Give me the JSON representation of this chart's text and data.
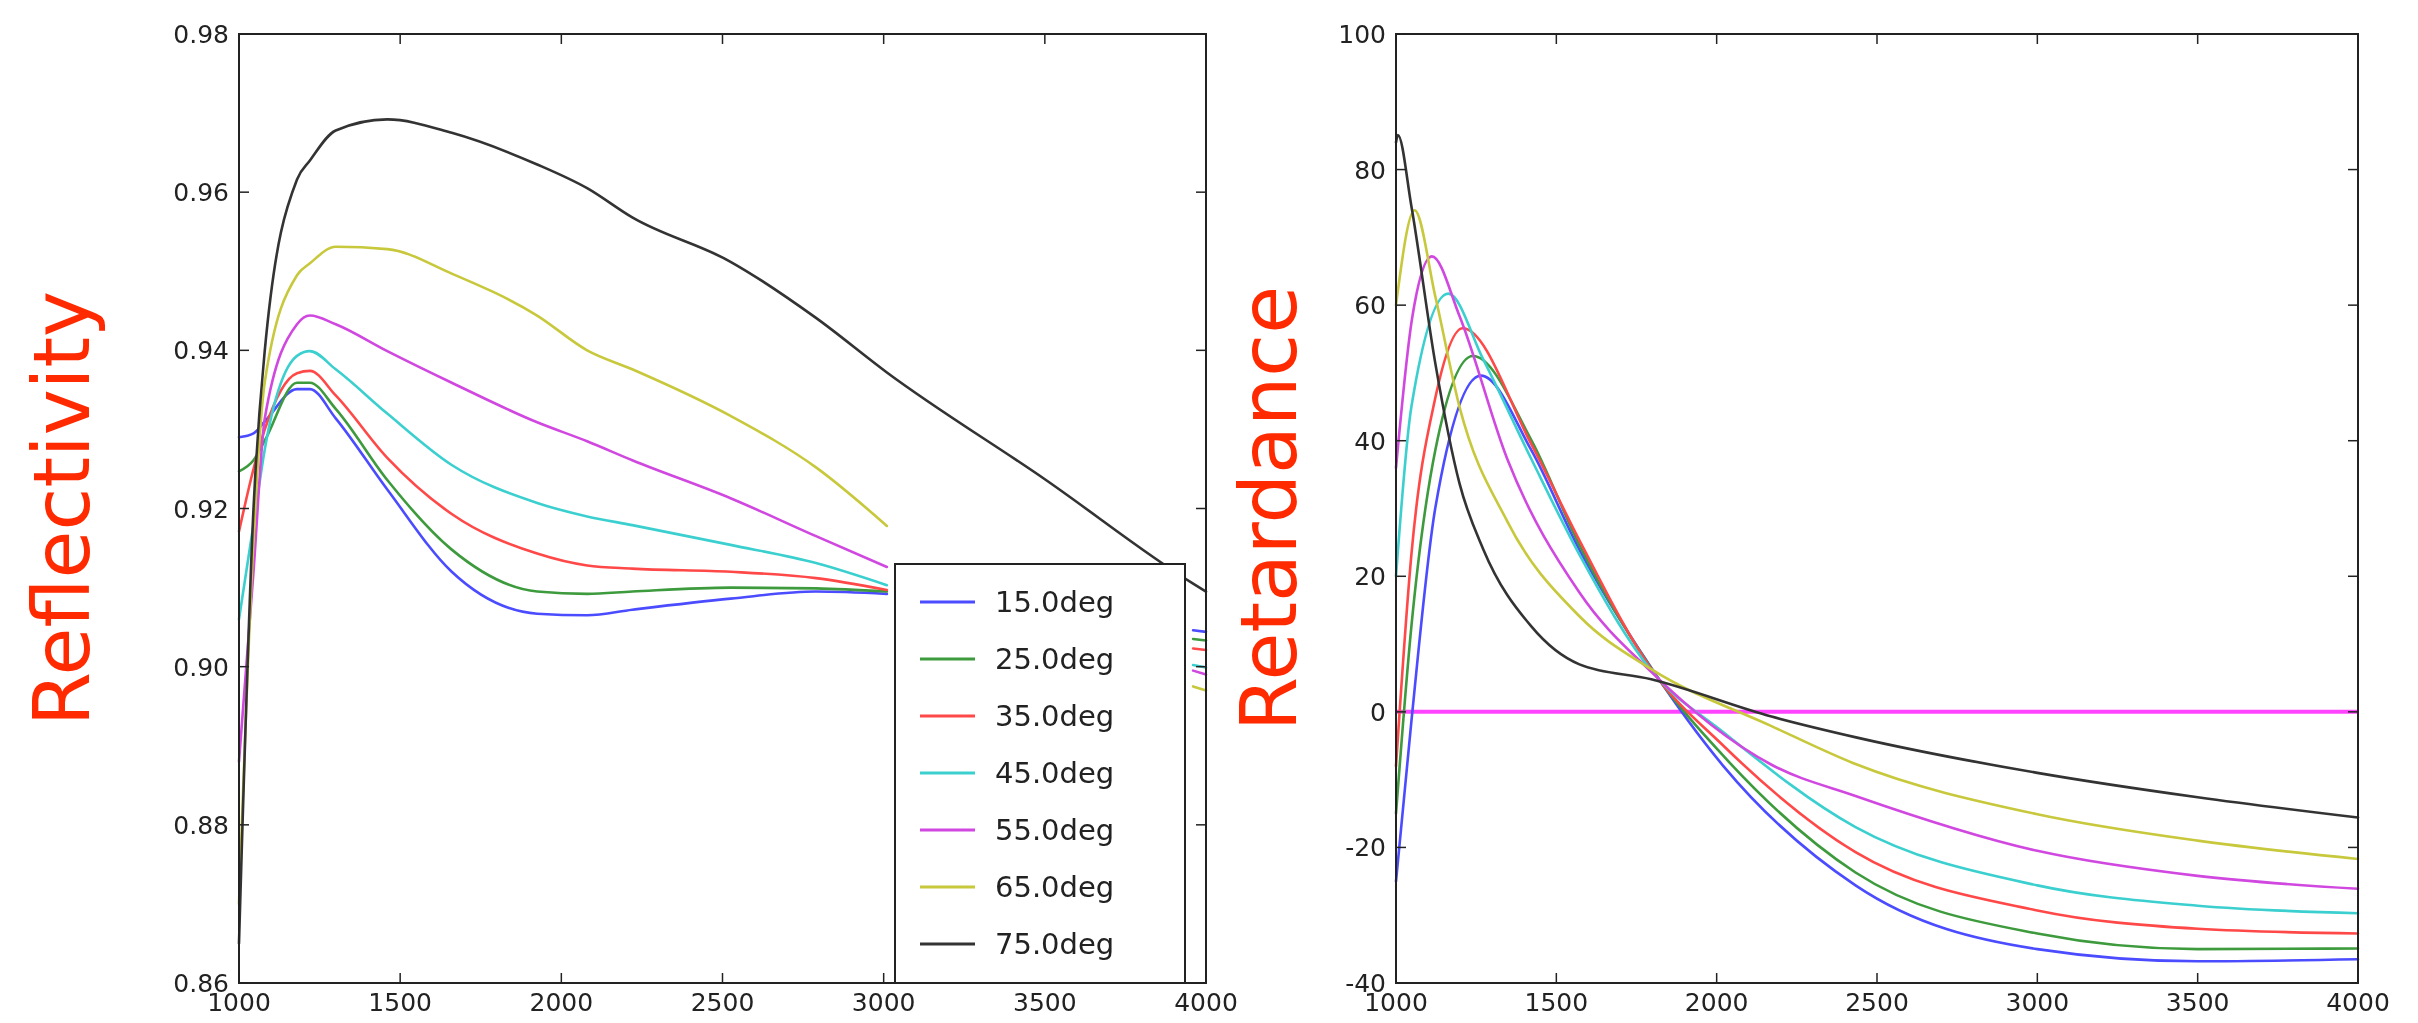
{
  "chart_data": [
    {
      "type": "line",
      "ylabel": "Reflectivity",
      "x": [
        1000,
        1045,
        1080,
        1180,
        1220,
        1300,
        1460,
        1660,
        1925,
        2080,
        2220,
        2525,
        2790,
        3010,
        3500,
        3960,
        4000
      ],
      "xlim": [
        1000,
        4000
      ],
      "ylim": [
        0.86,
        0.98
      ],
      "xticks": [
        1000,
        1500,
        2000,
        2500,
        3000,
        3500,
        4000
      ],
      "yticks": [
        0.86,
        0.88,
        {
          "value": 0.9,
          "label": "0.90"
        },
        0.92,
        0.94,
        0.96,
        0.98
      ],
      "grid": false,
      "legend": "bottom right",
      "line_style": "solid",
      "series": [
        {
          "name": "15.0deg",
          "color": "#4b4bff",
          "values": [
            0.929,
            0.9295,
            0.931,
            0.9351,
            0.9351,
            0.9314,
            0.9224,
            0.912,
            0.9067,
            0.9065,
            0.9072,
            0.9086,
            0.9095,
            0.9092,
            null,
            0.9046,
            0.9044
          ]
        },
        {
          "name": "25.0deg",
          "color": "#3d9a3d",
          "values": [
            0.9247,
            0.9261,
            0.9286,
            0.9359,
            0.9359,
            0.9326,
            0.9236,
            0.9148,
            0.9095,
            0.9092,
            0.9095,
            0.91,
            0.9099,
            0.9095,
            null,
            0.9035,
            0.9033
          ]
        },
        {
          "name": "35.0deg",
          "color": "#ff4848",
          "values": [
            0.9171,
            0.925,
            0.93,
            0.9371,
            0.9374,
            0.9343,
            0.9264,
            0.9193,
            0.9143,
            0.9128,
            0.9124,
            0.912,
            0.9112,
            0.9097,
            null,
            0.9023,
            0.9021
          ]
        },
        {
          "name": "45.0deg",
          "color": "#3ccfcf",
          "values": [
            0.906,
            0.918,
            0.9275,
            0.9393,
            0.9399,
            0.9376,
            0.932,
            0.9255,
            0.9207,
            0.919,
            0.9179,
            0.9154,
            0.9131,
            0.9103,
            null,
            0.9002,
            0.8999
          ]
        },
        {
          "name": "55.0deg",
          "color": "#d048e0",
          "values": [
            0.888,
            0.912,
            0.9314,
            0.9433,
            0.9444,
            0.9433,
            0.9399,
            0.9359,
            0.9309,
            0.9285,
            0.9261,
            0.9213,
            0.9165,
            0.9126,
            null,
            0.8995,
            0.899
          ]
        },
        {
          "name": "65.0deg",
          "color": "#c8c83c",
          "values": [
            0.87,
            0.916,
            0.936,
            0.9495,
            0.951,
            0.9531,
            0.9528,
            0.9497,
            0.9444,
            0.94,
            0.9376,
            0.9317,
            0.9252,
            0.9178,
            null,
            0.8975,
            0.897
          ]
        },
        {
          "name": "75.0deg",
          "color": "#333333",
          "values": [
            0.865,
            0.92,
            0.94,
            0.9616,
            0.964,
            0.9678,
            0.9692,
            0.9675,
            0.9635,
            0.9605,
            0.9568,
            0.9512,
            0.9441,
            0.9372,
            0.9237,
            0.9105,
            0.9095
          ]
        }
      ]
    },
    {
      "type": "line",
      "ylabel": "Retardance",
      "xlim": [
        1000,
        4000
      ],
      "ylim": [
        -40,
        100
      ],
      "xticks": [
        1000,
        1500,
        2000,
        2500,
        3000,
        3500,
        4000
      ],
      "yticks": [
        -40,
        -20,
        0,
        20,
        40,
        60,
        80,
        100
      ],
      "grid": false,
      "legend": false,
      "line_style": "solid",
      "ref_lines": [
        {
          "axis": "y",
          "value": 0,
          "color": "#ff44ff"
        }
      ],
      "series": [
        {
          "color": "#4b4bff",
          "x": [
            1000,
            1048,
            1123,
            1265,
            1422,
            1572,
            1796,
            2021,
            2433,
            3000,
            3500,
            4000
          ],
          "values": [
            -25,
            -1.4,
            30.2,
            49.6,
            38.6,
            23.9,
            6.5,
            -8,
            -25.6,
            -35.0,
            -36.8,
            -36.5
          ]
        },
        {
          "color": "#3d9a3d",
          "x": [
            1000,
            1048,
            1123,
            1240,
            1422,
            1572,
            1796,
            2021,
            2433,
            3000,
            3500,
            4000
          ],
          "values": [
            -15,
            12.6,
            38.7,
            52.5,
            40.1,
            24.6,
            6.4,
            -6.5,
            -23.7,
            -32.7,
            -35.0,
            -34.9
          ]
        },
        {
          "color": "#ff4848",
          "x": [
            1000,
            1048,
            1123,
            1208,
            1422,
            1572,
            1796,
            2021,
            2433,
            3000,
            3500,
            4000
          ],
          "values": [
            -8,
            23.2,
            46.4,
            56.6,
            39.5,
            25.3,
            6.3,
            -5,
            -20.7,
            -29.3,
            -32.0,
            -32.7
          ]
        },
        {
          "color": "#3ccfcf",
          "x": [
            1000,
            1048,
            1163,
            1272,
            1422,
            1572,
            1796,
            2021,
            2433,
            3000,
            3500,
            4000
          ],
          "values": [
            20,
            45,
            61.7,
            52.0,
            37.3,
            23.2,
            6.1,
            -3,
            -17.0,
            -25.6,
            -28.6,
            -29.7
          ]
        },
        {
          "color": "#d048e0",
          "x": [
            1000,
            1050,
            1112,
            1198,
            1347,
            1572,
            1796,
            2171,
            2433,
            3000,
            3500,
            4000
          ],
          "values": [
            36,
            58,
            67.2,
            58.4,
            37.3,
            17.6,
            5.9,
            -7.8,
            -12.4,
            -20.5,
            -24.2,
            -26.1
          ]
        },
        {
          "color": "#c8c83c",
          "x": [
            1000,
            1058,
            1123,
            1198,
            1347,
            1572,
            1796,
            2171,
            2433,
            3000,
            3500,
            4000
          ],
          "values": [
            60,
            74.0,
            61.2,
            45.0,
            28.1,
            14.1,
            6.3,
            -2.1,
            -7.7,
            -15.1,
            -19.0,
            -21.7
          ]
        },
        {
          "color": "#333333",
          "x": [
            1000,
            1006,
            1048,
            1123,
            1198,
            1272,
            1422,
            1572,
            1796,
            2171,
            2438,
            3000,
            3500,
            4000
          ],
          "values": [
            84,
            85.1,
            74.6,
            51.3,
            33.7,
            24.0,
            12.6,
            7.0,
            4.8,
            -0.7,
            -3.8,
            -9.0,
            -12.6,
            -15.6
          ]
        }
      ]
    }
  ]
}
